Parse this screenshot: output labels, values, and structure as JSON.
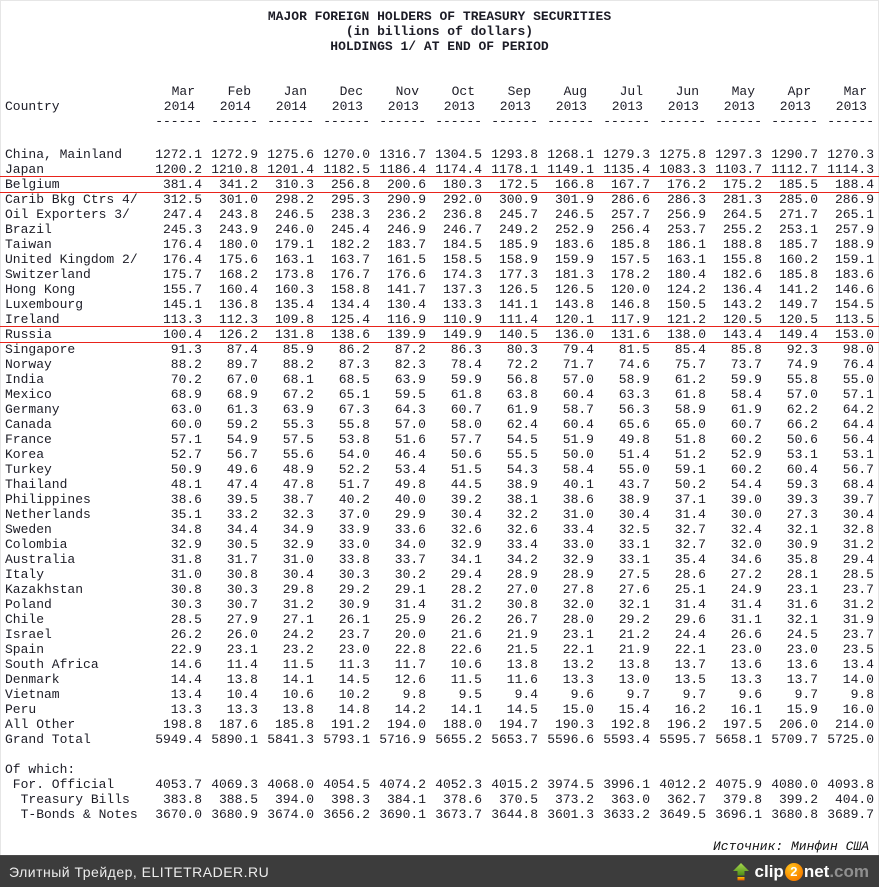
{
  "title_lines": [
    "MAJOR FOREIGN HOLDERS OF TREASURY SECURITIES",
    "(in billions of dollars)",
    "HOLDINGS 1/ AT END OF PERIOD"
  ],
  "table": {
    "country_header": "Country",
    "dash": "------",
    "columns": [
      {
        "month": "Mar",
        "year": "2014"
      },
      {
        "month": "Feb",
        "year": "2014"
      },
      {
        "month": "Jan",
        "year": "2014"
      },
      {
        "month": "Dec",
        "year": "2013"
      },
      {
        "month": "Nov",
        "year": "2013"
      },
      {
        "month": "Oct",
        "year": "2013"
      },
      {
        "month": "Sep",
        "year": "2013"
      },
      {
        "month": "Aug",
        "year": "2013"
      },
      {
        "month": "Jul",
        "year": "2013"
      },
      {
        "month": "Jun",
        "year": "2013"
      },
      {
        "month": "May",
        "year": "2013"
      },
      {
        "month": "Apr",
        "year": "2013"
      },
      {
        "month": "Mar",
        "year": "2013"
      }
    ],
    "highlight_color": "#e8231b",
    "rows": [
      {
        "country": "China, Mainland",
        "highlight": false,
        "values": [
          1272.1,
          1272.9,
          1275.6,
          1270.0,
          1316.7,
          1304.5,
          1293.8,
          1268.1,
          1279.3,
          1275.8,
          1297.3,
          1290.7,
          1270.3
        ]
      },
      {
        "country": "Japan",
        "highlight": false,
        "values": [
          1200.2,
          1210.8,
          1201.4,
          1182.5,
          1186.4,
          1174.4,
          1178.1,
          1149.1,
          1135.4,
          1083.3,
          1103.7,
          1112.7,
          1114.3
        ]
      },
      {
        "country": "Belgium",
        "highlight": true,
        "values": [
          381.4,
          341.2,
          310.3,
          256.8,
          200.6,
          180.3,
          172.5,
          166.8,
          167.7,
          176.2,
          175.2,
          185.5,
          188.4
        ]
      },
      {
        "country": "Carib Bkg Ctrs 4/",
        "highlight": false,
        "values": [
          312.5,
          301.0,
          298.2,
          295.3,
          290.9,
          292.0,
          300.9,
          301.9,
          286.6,
          286.3,
          281.3,
          285.0,
          286.9
        ]
      },
      {
        "country": "Oil Exporters 3/",
        "highlight": false,
        "values": [
          247.4,
          243.8,
          246.5,
          238.3,
          236.2,
          236.8,
          245.7,
          246.5,
          257.7,
          256.9,
          264.5,
          271.7,
          265.1
        ]
      },
      {
        "country": "Brazil",
        "highlight": false,
        "values": [
          245.3,
          243.9,
          246.0,
          245.4,
          246.9,
          246.7,
          249.2,
          252.9,
          256.4,
          253.7,
          255.2,
          253.1,
          257.9
        ]
      },
      {
        "country": "Taiwan",
        "highlight": false,
        "values": [
          176.4,
          180.0,
          179.1,
          182.2,
          183.7,
          184.5,
          185.9,
          183.6,
          185.8,
          186.1,
          188.8,
          185.7,
          188.9
        ]
      },
      {
        "country": "United Kingdom 2/",
        "highlight": false,
        "values": [
          176.4,
          175.6,
          163.1,
          163.7,
          161.5,
          158.5,
          158.9,
          159.9,
          157.5,
          163.1,
          155.8,
          160.2,
          159.1
        ]
      },
      {
        "country": "Switzerland",
        "highlight": false,
        "values": [
          175.7,
          168.2,
          173.8,
          176.7,
          176.6,
          174.3,
          177.3,
          181.3,
          178.2,
          180.4,
          182.6,
          185.8,
          183.6
        ]
      },
      {
        "country": "Hong Kong",
        "highlight": false,
        "values": [
          155.7,
          160.4,
          160.3,
          158.8,
          141.7,
          137.3,
          126.5,
          126.5,
          120.0,
          124.2,
          136.4,
          141.2,
          146.6
        ]
      },
      {
        "country": "Luxembourg",
        "highlight": false,
        "values": [
          145.1,
          136.8,
          135.4,
          134.4,
          130.4,
          133.3,
          141.1,
          143.8,
          146.8,
          150.5,
          143.2,
          149.7,
          154.5
        ]
      },
      {
        "country": "Ireland",
        "highlight": false,
        "values": [
          113.3,
          112.3,
          109.8,
          125.4,
          116.9,
          110.9,
          111.4,
          120.1,
          117.9,
          121.2,
          120.5,
          120.5,
          113.5
        ]
      },
      {
        "country": "Russia",
        "highlight": true,
        "values": [
          100.4,
          126.2,
          131.8,
          138.6,
          139.9,
          149.9,
          140.5,
          136.0,
          131.6,
          138.0,
          143.4,
          149.4,
          153.0
        ]
      },
      {
        "country": "Singapore",
        "highlight": false,
        "values": [
          91.3,
          87.4,
          85.9,
          86.2,
          87.2,
          86.3,
          80.3,
          79.4,
          81.5,
          85.4,
          85.8,
          92.3,
          98.0
        ]
      },
      {
        "country": "Norway",
        "highlight": false,
        "values": [
          88.2,
          89.7,
          88.2,
          87.3,
          82.3,
          78.4,
          72.2,
          71.7,
          74.6,
          75.7,
          73.7,
          74.9,
          76.4
        ]
      },
      {
        "country": "India",
        "highlight": false,
        "values": [
          70.2,
          67.0,
          68.1,
          68.5,
          63.9,
          59.9,
          56.8,
          57.0,
          58.9,
          61.2,
          59.9,
          55.8,
          55.0
        ]
      },
      {
        "country": "Mexico",
        "highlight": false,
        "values": [
          68.9,
          68.9,
          67.2,
          65.1,
          59.5,
          61.8,
          63.8,
          60.4,
          63.3,
          61.8,
          58.4,
          57.0,
          57.1
        ]
      },
      {
        "country": "Germany",
        "highlight": false,
        "values": [
          63.0,
          61.3,
          63.9,
          67.3,
          64.3,
          60.7,
          61.9,
          58.7,
          56.3,
          58.9,
          61.9,
          62.2,
          64.2
        ]
      },
      {
        "country": "Canada",
        "highlight": false,
        "values": [
          60.0,
          59.2,
          55.3,
          55.8,
          57.0,
          58.0,
          62.4,
          60.4,
          65.6,
          65.0,
          60.7,
          66.2,
          64.4
        ]
      },
      {
        "country": "France",
        "highlight": false,
        "values": [
          57.1,
          54.9,
          57.5,
          53.8,
          51.6,
          57.7,
          54.5,
          51.9,
          49.8,
          51.8,
          60.2,
          50.6,
          56.4
        ]
      },
      {
        "country": "Korea",
        "highlight": false,
        "values": [
          52.7,
          56.7,
          55.6,
          54.0,
          46.4,
          50.6,
          55.5,
          50.0,
          51.4,
          51.2,
          52.9,
          53.1,
          53.1
        ]
      },
      {
        "country": "Turkey",
        "highlight": false,
        "values": [
          50.9,
          49.6,
          48.9,
          52.2,
          53.4,
          51.5,
          54.3,
          58.4,
          55.0,
          59.1,
          60.2,
          60.4,
          56.7
        ]
      },
      {
        "country": "Thailand",
        "highlight": false,
        "values": [
          48.1,
          47.4,
          47.8,
          51.7,
          49.8,
          44.5,
          38.9,
          40.1,
          43.7,
          50.2,
          54.4,
          59.3,
          68.4
        ]
      },
      {
        "country": "Philippines",
        "highlight": false,
        "values": [
          38.6,
          39.5,
          38.7,
          40.2,
          40.0,
          39.2,
          38.1,
          38.6,
          38.9,
          37.1,
          39.0,
          39.3,
          39.7
        ]
      },
      {
        "country": "Netherlands",
        "highlight": false,
        "values": [
          35.1,
          33.2,
          32.3,
          37.0,
          29.9,
          30.4,
          32.2,
          31.0,
          30.4,
          31.4,
          30.0,
          27.3,
          30.4
        ]
      },
      {
        "country": "Sweden",
        "highlight": false,
        "values": [
          34.8,
          34.4,
          34.9,
          33.9,
          33.6,
          32.6,
          32.6,
          33.4,
          32.5,
          32.7,
          32.4,
          32.1,
          32.8
        ]
      },
      {
        "country": "Colombia",
        "highlight": false,
        "values": [
          32.9,
          30.5,
          32.9,
          33.0,
          34.0,
          32.9,
          33.4,
          33.0,
          33.1,
          32.7,
          32.0,
          30.9,
          31.2
        ]
      },
      {
        "country": "Australia",
        "highlight": false,
        "values": [
          31.8,
          31.7,
          31.0,
          33.8,
          33.7,
          34.1,
          34.2,
          32.9,
          33.1,
          35.4,
          34.6,
          35.8,
          29.4
        ]
      },
      {
        "country": "Italy",
        "highlight": false,
        "values": [
          31.0,
          30.8,
          30.4,
          30.3,
          30.2,
          29.4,
          28.9,
          28.9,
          27.5,
          28.6,
          27.2,
          28.1,
          28.5
        ]
      },
      {
        "country": "Kazakhstan",
        "highlight": false,
        "values": [
          30.8,
          30.3,
          29.8,
          29.2,
          29.1,
          28.2,
          27.0,
          27.8,
          27.6,
          25.1,
          24.9,
          23.1,
          23.7
        ]
      },
      {
        "country": "Poland",
        "highlight": false,
        "values": [
          30.3,
          30.7,
          31.2,
          30.9,
          31.4,
          31.2,
          30.8,
          32.0,
          32.1,
          31.4,
          31.4,
          31.6,
          31.2
        ]
      },
      {
        "country": "Chile",
        "highlight": false,
        "values": [
          28.5,
          27.9,
          27.1,
          26.1,
          25.9,
          26.2,
          26.7,
          28.0,
          29.2,
          29.6,
          31.1,
          32.1,
          31.9
        ]
      },
      {
        "country": "Israel",
        "highlight": false,
        "values": [
          26.2,
          26.0,
          24.2,
          23.7,
          20.0,
          21.6,
          21.9,
          23.1,
          21.2,
          24.4,
          26.6,
          24.5,
          23.7
        ]
      },
      {
        "country": "Spain",
        "highlight": false,
        "values": [
          22.9,
          23.1,
          23.2,
          23.0,
          22.8,
          22.6,
          21.5,
          22.1,
          21.9,
          22.1,
          23.0,
          23.0,
          23.5
        ]
      },
      {
        "country": "South Africa",
        "highlight": false,
        "values": [
          14.6,
          11.4,
          11.5,
          11.3,
          11.7,
          10.6,
          13.8,
          13.2,
          13.8,
          13.7,
          13.6,
          13.6,
          13.4
        ]
      },
      {
        "country": "Denmark",
        "highlight": false,
        "values": [
          14.4,
          13.8,
          14.1,
          14.5,
          12.6,
          11.5,
          11.6,
          13.3,
          13.0,
          13.5,
          13.3,
          13.7,
          14.0
        ]
      },
      {
        "country": "Vietnam",
        "highlight": false,
        "values": [
          13.4,
          10.4,
          10.6,
          10.2,
          9.8,
          9.5,
          9.4,
          9.6,
          9.7,
          9.7,
          9.6,
          9.7,
          9.8
        ]
      },
      {
        "country": "Peru",
        "highlight": false,
        "values": [
          13.3,
          13.3,
          13.8,
          14.8,
          14.2,
          14.1,
          14.5,
          15.0,
          15.4,
          16.2,
          16.1,
          15.9,
          16.0
        ]
      },
      {
        "country": "All Other",
        "highlight": false,
        "values": [
          198.8,
          187.6,
          185.8,
          191.2,
          194.0,
          188.0,
          194.7,
          190.3,
          192.8,
          196.2,
          197.5,
          206.0,
          214.0
        ]
      },
      {
        "country": "Grand Total",
        "highlight": false,
        "values": [
          5949.4,
          5890.1,
          5841.3,
          5793.1,
          5716.9,
          5655.2,
          5653.7,
          5596.6,
          5593.4,
          5595.7,
          5658.1,
          5709.7,
          5725.0
        ]
      }
    ],
    "of_which_label": "Of which:",
    "of_which_rows": [
      {
        "country": " For. Official",
        "values": [
          4053.7,
          4069.3,
          4068.0,
          4054.5,
          4074.2,
          4052.3,
          4015.2,
          3974.5,
          3996.1,
          4012.2,
          4075.9,
          4080.0,
          4093.8
        ]
      },
      {
        "country": "  Treasury Bills",
        "values": [
          383.8,
          388.5,
          394.0,
          398.3,
          384.1,
          378.6,
          370.5,
          373.2,
          363.0,
          362.7,
          379.8,
          399.2,
          404.0
        ]
      },
      {
        "country": "  T-Bonds & Notes",
        "values": [
          3670.0,
          3680.9,
          3674.0,
          3656.2,
          3690.1,
          3673.7,
          3644.8,
          3601.3,
          3633.2,
          3649.5,
          3696.1,
          3680.8,
          3689.7
        ]
      }
    ]
  },
  "source_note": "Источник: Минфин США",
  "footer": {
    "site_label": "Элитный Трейдер, ELITETRADER.RU",
    "bar_color": "#3c3c3c",
    "logo": {
      "icon": "upload-arrow-icon",
      "part1": "clip",
      "badge": "2",
      "part2": "net",
      "suffix": ".com"
    }
  }
}
